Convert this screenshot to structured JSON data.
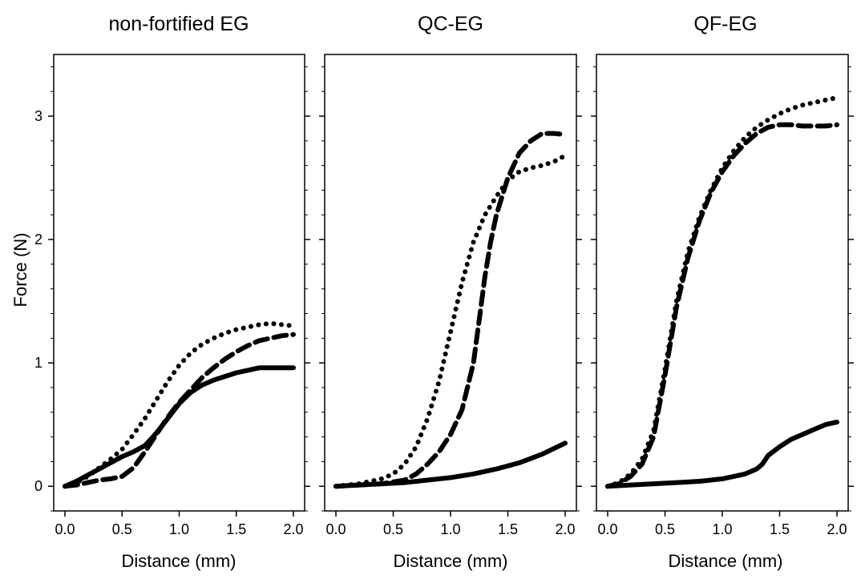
{
  "chart_data": [
    {
      "type": "line",
      "title": "non-fortified EG",
      "xlabel": "Distance (mm)",
      "ylabel": "Force (N)",
      "xlim": [
        0,
        2.0
      ],
      "ylim": [
        -0.2,
        3.5
      ],
      "x_ticks": [
        "0.0",
        "0.5",
        "1.0",
        "1.5",
        "2.0"
      ],
      "y_ticks": [
        "0",
        "1",
        "2",
        "3"
      ],
      "series": [
        {
          "style": "dotted",
          "x": [
            0.0,
            0.1,
            0.2,
            0.3,
            0.4,
            0.5,
            0.6,
            0.7,
            0.8,
            0.9,
            1.0,
            1.1,
            1.2,
            1.3,
            1.4,
            1.5,
            1.6,
            1.7,
            1.8,
            1.9,
            2.0
          ],
          "y": [
            0.0,
            0.03,
            0.08,
            0.15,
            0.22,
            0.3,
            0.42,
            0.55,
            0.7,
            0.85,
            0.98,
            1.08,
            1.15,
            1.2,
            1.24,
            1.27,
            1.29,
            1.31,
            1.32,
            1.31,
            1.3
          ]
        },
        {
          "style": "dashed",
          "x": [
            0.0,
            0.1,
            0.2,
            0.3,
            0.4,
            0.5,
            0.6,
            0.7,
            0.8,
            0.9,
            1.0,
            1.1,
            1.2,
            1.3,
            1.4,
            1.5,
            1.6,
            1.7,
            1.8,
            1.9,
            2.0
          ],
          "y": [
            0.0,
            0.01,
            0.03,
            0.05,
            0.06,
            0.08,
            0.15,
            0.28,
            0.42,
            0.56,
            0.68,
            0.78,
            0.88,
            0.96,
            1.03,
            1.09,
            1.14,
            1.18,
            1.2,
            1.22,
            1.23
          ]
        },
        {
          "style": "solid",
          "x": [
            0.0,
            0.1,
            0.2,
            0.3,
            0.4,
            0.5,
            0.6,
            0.7,
            0.8,
            0.9,
            1.0,
            1.1,
            1.2,
            1.3,
            1.4,
            1.5,
            1.6,
            1.7,
            1.8,
            1.9,
            2.0
          ],
          "y": [
            0.0,
            0.04,
            0.09,
            0.14,
            0.19,
            0.24,
            0.28,
            0.33,
            0.43,
            0.55,
            0.67,
            0.76,
            0.82,
            0.86,
            0.89,
            0.92,
            0.94,
            0.96,
            0.96,
            0.96,
            0.96
          ]
        }
      ]
    },
    {
      "type": "line",
      "title": "QC-EG",
      "xlabel": "Distance (mm)",
      "xlim": [
        0,
        2.0
      ],
      "ylim": [
        -0.2,
        3.5
      ],
      "x_ticks": [
        "0.0",
        "0.5",
        "1.0",
        "1.5",
        "2.0"
      ],
      "series": [
        {
          "style": "dotted",
          "x": [
            0.0,
            0.2,
            0.4,
            0.5,
            0.6,
            0.7,
            0.8,
            0.9,
            1.0,
            1.1,
            1.2,
            1.3,
            1.4,
            1.5,
            1.6,
            1.7,
            1.8,
            1.9,
            2.0
          ],
          "y": [
            0.0,
            0.02,
            0.06,
            0.1,
            0.18,
            0.32,
            0.55,
            0.85,
            1.25,
            1.65,
            1.98,
            2.2,
            2.35,
            2.48,
            2.55,
            2.58,
            2.6,
            2.63,
            2.68
          ]
        },
        {
          "style": "dashed",
          "x": [
            0.0,
            0.2,
            0.4,
            0.6,
            0.7,
            0.8,
            0.9,
            1.0,
            1.1,
            1.2,
            1.25,
            1.3,
            1.35,
            1.4,
            1.5,
            1.6,
            1.7,
            1.8,
            1.9,
            2.0
          ],
          "y": [
            0.0,
            0.01,
            0.02,
            0.05,
            0.1,
            0.18,
            0.28,
            0.42,
            0.62,
            1.0,
            1.35,
            1.7,
            1.98,
            2.2,
            2.5,
            2.7,
            2.8,
            2.86,
            2.86,
            2.85
          ]
        },
        {
          "style": "solid",
          "x": [
            0.0,
            0.2,
            0.4,
            0.6,
            0.8,
            1.0,
            1.2,
            1.4,
            1.6,
            1.8,
            2.0
          ],
          "y": [
            0.0,
            0.01,
            0.02,
            0.03,
            0.05,
            0.07,
            0.1,
            0.14,
            0.19,
            0.26,
            0.35
          ]
        }
      ]
    },
    {
      "type": "line",
      "title": "QF-EG",
      "xlabel": "Distance (mm)",
      "xlim": [
        0,
        2.0
      ],
      "ylim": [
        -0.2,
        3.5
      ],
      "x_ticks": [
        "0.0",
        "0.5",
        "1.0",
        "1.5",
        "2.0"
      ],
      "series": [
        {
          "style": "dotted",
          "x": [
            0.0,
            0.1,
            0.2,
            0.3,
            0.4,
            0.5,
            0.6,
            0.7,
            0.8,
            0.9,
            1.0,
            1.1,
            1.2,
            1.3,
            1.4,
            1.5,
            1.6,
            1.7,
            1.8,
            1.9,
            2.0
          ],
          "y": [
            0.0,
            0.03,
            0.1,
            0.22,
            0.45,
            0.95,
            1.5,
            1.9,
            2.18,
            2.4,
            2.58,
            2.72,
            2.83,
            2.91,
            2.97,
            3.02,
            3.06,
            3.09,
            3.11,
            3.13,
            3.15
          ]
        },
        {
          "style": "dashed",
          "x": [
            0.0,
            0.1,
            0.2,
            0.3,
            0.4,
            0.5,
            0.6,
            0.7,
            0.8,
            0.9,
            1.0,
            1.1,
            1.2,
            1.3,
            1.4,
            1.5,
            1.6,
            1.7,
            1.8,
            1.9,
            2.0
          ],
          "y": [
            0.0,
            0.02,
            0.08,
            0.18,
            0.4,
            0.9,
            1.45,
            1.85,
            2.15,
            2.38,
            2.55,
            2.68,
            2.78,
            2.86,
            2.91,
            2.93,
            2.93,
            2.92,
            2.92,
            2.92,
            2.93
          ]
        },
        {
          "style": "solid",
          "x": [
            0.0,
            0.2,
            0.4,
            0.6,
            0.8,
            1.0,
            1.1,
            1.2,
            1.3,
            1.35,
            1.4,
            1.5,
            1.6,
            1.7,
            1.8,
            1.9,
            2.0
          ],
          "y": [
            0.0,
            0.01,
            0.02,
            0.03,
            0.04,
            0.06,
            0.08,
            0.1,
            0.14,
            0.18,
            0.25,
            0.32,
            0.38,
            0.42,
            0.46,
            0.5,
            0.52
          ]
        }
      ]
    }
  ]
}
